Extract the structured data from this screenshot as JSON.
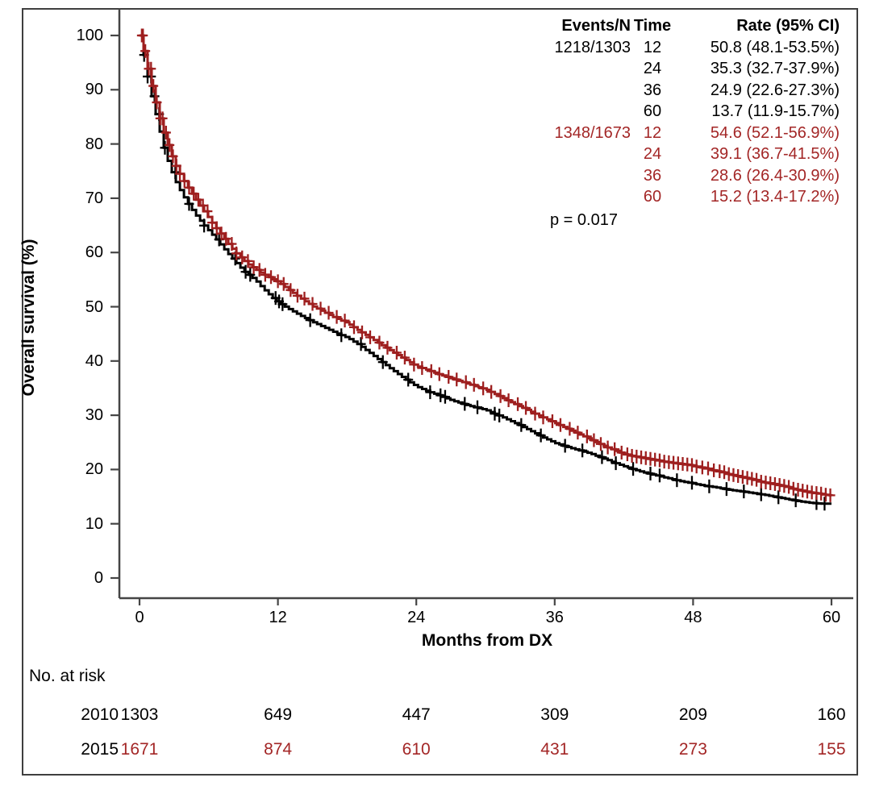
{
  "figure": {
    "y_axis_label": "Overall survival (%)",
    "x_axis_label": "Months from DX",
    "p_value": "p = 0.017",
    "colors": {
      "series_2010": "#000000",
      "series_2015": "#9e1f1f",
      "series_2015_text": "#a32626",
      "axis": "#454545"
    }
  },
  "legend": {
    "headers": {
      "events": "Events/N",
      "time": "Time",
      "rate": "Rate (95% CI)"
    },
    "groups": [
      {
        "events_n": "1218/1303",
        "color_key": "series_2010",
        "rows": [
          {
            "time": "12",
            "rate": "50.8 (48.1-53.5%)"
          },
          {
            "time": "24",
            "rate": "35.3 (32.7-37.9%)"
          },
          {
            "time": "36",
            "rate": "24.9 (22.6-27.3%)"
          },
          {
            "time": "60",
            "rate": "13.7 (11.9-15.7%)"
          }
        ]
      },
      {
        "events_n": "1348/1673",
        "color_key": "series_2015_text",
        "rows": [
          {
            "time": "12",
            "rate": "54.6 (52.1-56.9%)"
          },
          {
            "time": "24",
            "rate": "39.1 (36.7-41.5%)"
          },
          {
            "time": "36",
            "rate": "28.6 (26.4-30.9%)"
          },
          {
            "time": "60",
            "rate": "15.2 (13.4-17.2%)"
          }
        ]
      }
    ]
  },
  "at_risk": {
    "label": "No. at risk",
    "rows": [
      {
        "year": "2010",
        "color_key": "series_2010",
        "values": [
          "1303",
          "649",
          "447",
          "309",
          "209",
          "160"
        ]
      },
      {
        "year": "2015",
        "color_key": "series_2015_text",
        "values": [
          "1671",
          "874",
          "610",
          "431",
          "273",
          "155"
        ]
      }
    ]
  },
  "chart_data": {
    "type": "line",
    "subtype": "kaplan-meier-step",
    "title": "",
    "xlabel": "Months from DX",
    "ylabel": "Overall survival (%)",
    "xlim": [
      0,
      60
    ],
    "ylim": [
      0,
      100
    ],
    "x_ticks": [
      0,
      12,
      24,
      36,
      48,
      60
    ],
    "y_ticks": [
      0,
      10,
      20,
      30,
      40,
      50,
      60,
      70,
      80,
      90,
      100
    ],
    "grid": false,
    "legend_position": "top-right",
    "series": [
      {
        "name": "2010",
        "events_n": "1218/1303",
        "color": "#000000",
        "rates": {
          "12": 50.8,
          "24": 35.3,
          "36": 24.9,
          "60": 13.7
        },
        "points": [
          [
            0,
            100
          ],
          [
            0.3,
            97
          ],
          [
            0.6,
            93.5
          ],
          [
            0.9,
            90.3
          ],
          [
            1.2,
            87.3
          ],
          [
            1.5,
            84.6
          ],
          [
            1.8,
            81.8
          ],
          [
            2.1,
            79.3
          ],
          [
            2.4,
            77.2
          ],
          [
            2.7,
            75.4
          ],
          [
            3,
            73.6
          ],
          [
            3.5,
            71.5
          ],
          [
            4,
            69.6
          ],
          [
            4.5,
            68
          ],
          [
            5,
            66.5
          ],
          [
            5.5,
            65.2
          ],
          [
            6,
            64
          ],
          [
            6.5,
            62.8
          ],
          [
            7,
            61.5
          ],
          [
            7.5,
            60.2
          ],
          [
            8,
            59
          ],
          [
            8.5,
            57.8
          ],
          [
            9,
            56.6
          ],
          [
            9.5,
            55.8
          ],
          [
            10,
            55
          ],
          [
            10.5,
            53.8
          ],
          [
            11,
            52.7
          ],
          [
            11.5,
            51.7
          ],
          [
            12,
            50.8
          ],
          [
            13,
            49.5
          ],
          [
            14,
            48.3
          ],
          [
            15,
            47.2
          ],
          [
            16,
            46.2
          ],
          [
            17,
            45.2
          ],
          [
            18,
            44.3
          ],
          [
            19,
            43
          ],
          [
            20,
            41.4
          ],
          [
            21,
            39.8
          ],
          [
            22,
            38.2
          ],
          [
            23,
            36.7
          ],
          [
            24,
            35.3
          ],
          [
            25,
            34.4
          ],
          [
            26,
            33.6
          ],
          [
            27,
            32.8
          ],
          [
            28,
            32.1
          ],
          [
            29,
            31.5
          ],
          [
            30,
            31
          ],
          [
            31,
            30.1
          ],
          [
            32,
            29.1
          ],
          [
            33,
            28.1
          ],
          [
            34,
            27
          ],
          [
            35,
            25.9
          ],
          [
            36,
            24.9
          ],
          [
            37,
            24.2
          ],
          [
            38,
            23.6
          ],
          [
            39,
            23
          ],
          [
            40,
            22.2
          ],
          [
            41,
            21.4
          ],
          [
            42,
            20.6
          ],
          [
            43,
            19.9
          ],
          [
            44,
            19.3
          ],
          [
            45,
            18.8
          ],
          [
            46,
            18.3
          ],
          [
            47,
            17.8
          ],
          [
            48,
            17.4
          ],
          [
            49,
            17
          ],
          [
            50,
            16.7
          ],
          [
            51,
            16.3
          ],
          [
            52,
            16
          ],
          [
            53,
            15.7
          ],
          [
            54,
            15.4
          ],
          [
            55,
            15
          ],
          [
            56,
            14.6
          ],
          [
            57,
            14.2
          ],
          [
            58,
            13.9
          ],
          [
            59,
            13.7
          ],
          [
            60,
            13.7
          ]
        ],
        "censor_months": [
          0.4,
          0.7,
          1.0,
          1.3,
          1.7,
          2.2,
          3.1,
          4.3,
          5.6,
          6.9,
          8.3,
          9.2,
          9.6,
          11.8,
          12.1,
          12.4,
          14.8,
          17.5,
          19.2,
          21.1,
          23.3,
          25.2,
          26.1,
          26.5,
          28.2,
          29.3,
          30.8,
          31.2,
          33.1,
          34.8,
          36.9,
          38.4,
          40.1,
          41.3,
          42.8,
          44.3,
          45.1,
          46.6,
          47.9,
          49.4,
          50.9,
          52.4,
          53.9,
          55.4,
          56.9,
          58.7,
          59.4
        ]
      },
      {
        "name": "2015",
        "events_n": "1348/1673",
        "color": "#9e1f1f",
        "rates": {
          "12": 54.6,
          "24": 39.1,
          "36": 28.6,
          "60": 15.2
        },
        "points": [
          [
            0,
            100
          ],
          [
            0.3,
            97.6
          ],
          [
            0.6,
            94.8
          ],
          [
            0.9,
            92
          ],
          [
            1.2,
            89.4
          ],
          [
            1.5,
            86.8
          ],
          [
            1.8,
            84.3
          ],
          [
            2.1,
            82.1
          ],
          [
            2.4,
            80.1
          ],
          [
            2.7,
            78.3
          ],
          [
            3,
            76.6
          ],
          [
            3.5,
            74.5
          ],
          [
            4,
            72.6
          ],
          [
            4.5,
            71
          ],
          [
            5,
            69.4
          ],
          [
            5.5,
            67.9
          ],
          [
            6,
            66.4
          ],
          [
            6.5,
            64.9
          ],
          [
            7,
            63.5
          ],
          [
            7.5,
            62.1
          ],
          [
            8,
            60.8
          ],
          [
            8.5,
            59.6
          ],
          [
            9,
            58.6
          ],
          [
            9.5,
            57.7
          ],
          [
            10,
            57
          ],
          [
            10.5,
            56.3
          ],
          [
            11,
            55.7
          ],
          [
            11.5,
            55.1
          ],
          [
            12,
            54.6
          ],
          [
            13,
            53
          ],
          [
            14,
            51.5
          ],
          [
            15,
            50.1
          ],
          [
            16,
            49
          ],
          [
            17,
            47.9
          ],
          [
            18,
            47
          ],
          [
            19,
            45.6
          ],
          [
            20,
            44.3
          ],
          [
            21,
            42.9
          ],
          [
            22,
            41.6
          ],
          [
            23,
            40.3
          ],
          [
            24,
            39.1
          ],
          [
            25,
            38.3
          ],
          [
            26,
            37.5
          ],
          [
            27,
            36.8
          ],
          [
            28,
            36.1
          ],
          [
            29,
            35.4
          ],
          [
            30,
            34.8
          ],
          [
            31,
            33.7
          ],
          [
            32,
            32.6
          ],
          [
            33,
            31.6
          ],
          [
            34,
            30.6
          ],
          [
            35,
            29.6
          ],
          [
            36,
            28.6
          ],
          [
            37,
            27.6
          ],
          [
            38,
            26.6
          ],
          [
            39,
            25.6
          ],
          [
            40,
            24.6
          ],
          [
            41,
            23.7
          ],
          [
            42,
            22.8
          ],
          [
            43,
            22.4
          ],
          [
            44,
            22
          ],
          [
            45,
            21.6
          ],
          [
            46,
            21.3
          ],
          [
            47,
            21
          ],
          [
            48,
            20.7
          ],
          [
            49,
            20.2
          ],
          [
            50,
            19.7
          ],
          [
            51,
            19.2
          ],
          [
            52,
            18.7
          ],
          [
            53,
            18.2
          ],
          [
            54,
            17.7
          ],
          [
            55,
            17.3
          ],
          [
            56,
            16.8
          ],
          [
            57,
            16.3
          ],
          [
            58,
            15.8
          ],
          [
            59,
            15.5
          ],
          [
            60,
            15.2
          ]
        ],
        "censor_months": [
          0.2,
          0.3,
          0.5,
          0.8,
          1.0,
          1.2,
          1.5,
          1.8,
          2.0,
          2.3,
          2.6,
          2.9,
          3.2,
          3.5,
          3.9,
          4.3,
          4.7,
          5.1,
          5.5,
          5.9,
          6.3,
          6.7,
          7.1,
          7.5,
          8.0,
          8.4,
          8.9,
          9.4,
          9.9,
          10.4,
          10.9,
          11.4,
          12.0,
          12.5,
          13.1,
          13.7,
          14.3,
          15.0,
          15.7,
          16.4,
          17.1,
          17.8,
          18.6,
          19.3,
          20.0,
          20.8,
          21.5,
          22.3,
          23.0,
          23.8,
          24.5,
          25.3,
          26.0,
          26.8,
          27.5,
          28.3,
          29.0,
          29.8,
          30.5,
          31.3,
          32.0,
          32.8,
          33.5,
          34.3,
          35.0,
          35.8,
          36.5,
          37.3,
          38.0,
          38.8,
          39.4,
          40.0,
          40.6,
          41.2,
          41.8,
          42.3,
          42.7,
          43.1,
          43.5,
          43.9,
          44.3,
          44.7,
          45.1,
          45.5,
          45.9,
          46.3,
          46.7,
          47.1,
          47.5,
          47.9,
          48.3,
          48.8,
          49.3,
          49.8,
          50.3,
          50.7,
          51.1,
          51.5,
          51.9,
          52.3,
          52.7,
          53.1,
          53.5,
          53.9,
          54.3,
          54.7,
          55.1,
          55.5,
          55.9,
          56.3,
          56.7,
          57.1,
          57.5,
          57.9,
          58.3,
          58.7,
          59.1,
          59.5,
          59.9
        ]
      }
    ],
    "at_risk_table": {
      "label": "No. at risk",
      "time_points": [
        0,
        12,
        24,
        36,
        48,
        60
      ],
      "rows": [
        {
          "name": "2010",
          "counts": [
            1303,
            649,
            447,
            309,
            209,
            160
          ]
        },
        {
          "name": "2015",
          "counts": [
            1671,
            874,
            610,
            431,
            273,
            155
          ]
        }
      ]
    }
  }
}
